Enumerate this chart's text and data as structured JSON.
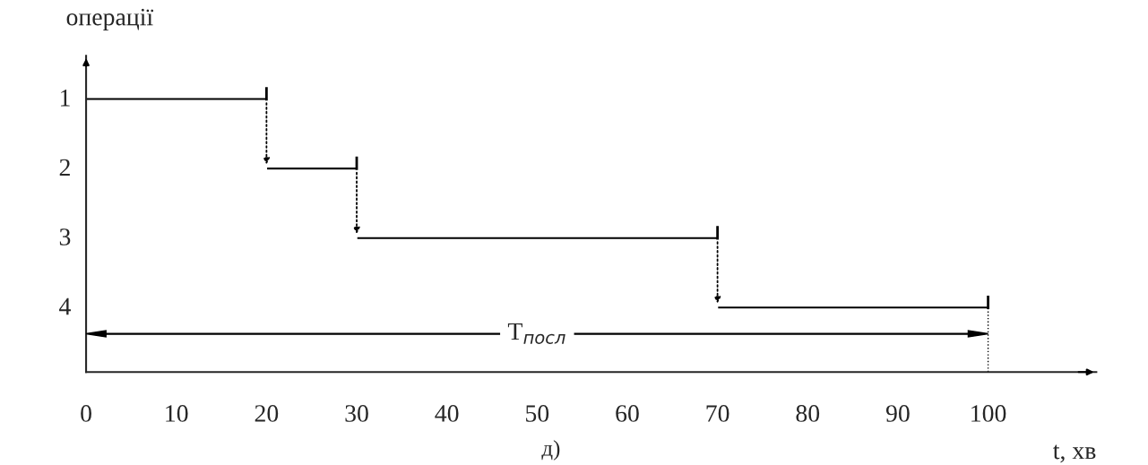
{
  "chart_data": {
    "type": "bar",
    "orientation": "horizontal",
    "ylabel": "операції",
    "xlabel": "t, хв",
    "categories": [
      "1",
      "2",
      "3",
      "4"
    ],
    "base": [
      0,
      20,
      30,
      70
    ],
    "values": [
      20,
      10,
      40,
      30
    ],
    "color": "#000000",
    "xlim": [
      0,
      112
    ],
    "xticks": [
      0,
      10,
      20,
      30,
      40,
      50,
      60,
      70,
      80,
      90,
      100
    ],
    "ref_lines": [
      {
        "axis": "x",
        "value": 100,
        "line_style": "dotted",
        "color": "#000000"
      }
    ],
    "annotations": [
      "T$_{посл}$",
      "д)"
    ],
    "grid": false,
    "legend": false
  }
}
